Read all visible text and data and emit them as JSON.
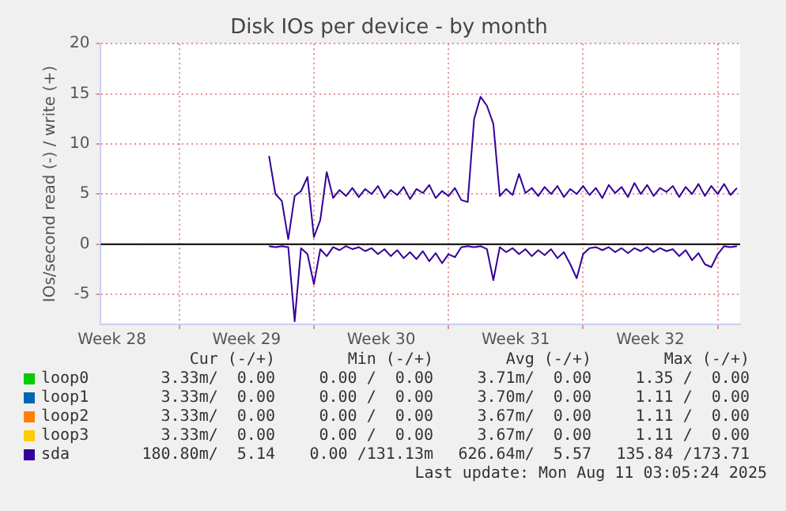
{
  "chart_data": {
    "type": "line",
    "title": "Disk IOs per device - by month",
    "ylabel": "IOs/second read (-) / write (+)",
    "x": [
      "2025-07-17T16:00",
      "2025-07-18T00:00",
      "2025-07-18T08:00",
      "2025-07-18T16:00",
      "2025-07-19T00:00",
      "2025-07-19T08:00",
      "2025-07-19T16:00",
      "2025-07-20T00:00",
      "2025-07-20T08:00",
      "2025-07-20T16:00",
      "2025-07-21T00:00",
      "2025-07-21T08:00",
      "2025-07-21T16:00",
      "2025-07-22T00:00",
      "2025-07-22T08:00",
      "2025-07-22T16:00",
      "2025-07-23T00:00",
      "2025-07-23T08:00",
      "2025-07-23T16:00",
      "2025-07-24T00:00",
      "2025-07-24T08:00",
      "2025-07-24T16:00",
      "2025-07-25T00:00",
      "2025-07-25T08:00",
      "2025-07-25T16:00",
      "2025-07-26T00:00",
      "2025-07-26T08:00",
      "2025-07-26T16:00",
      "2025-07-27T00:00",
      "2025-07-27T08:00",
      "2025-07-27T16:00",
      "2025-07-28T00:00",
      "2025-07-28T08:00",
      "2025-07-28T16:00",
      "2025-07-29T00:00",
      "2025-07-29T08:00",
      "2025-07-29T16:00",
      "2025-07-30T00:00",
      "2025-07-30T08:00",
      "2025-07-30T16:00",
      "2025-07-31T00:00",
      "2025-07-31T08:00",
      "2025-07-31T16:00",
      "2025-08-01T00:00",
      "2025-08-01T08:00",
      "2025-08-01T16:00",
      "2025-08-02T00:00",
      "2025-08-02T08:00",
      "2025-08-02T16:00",
      "2025-08-03T00:00",
      "2025-08-03T08:00",
      "2025-08-03T16:00",
      "2025-08-04T00:00",
      "2025-08-04T08:00",
      "2025-08-04T16:00",
      "2025-08-05T00:00",
      "2025-08-05T08:00",
      "2025-08-05T16:00",
      "2025-08-06T00:00",
      "2025-08-06T08:00",
      "2025-08-06T16:00",
      "2025-08-07T00:00",
      "2025-08-07T08:00",
      "2025-08-07T16:00",
      "2025-08-08T00:00",
      "2025-08-08T08:00",
      "2025-08-08T16:00",
      "2025-08-09T00:00",
      "2025-08-09T08:00",
      "2025-08-09T16:00",
      "2025-08-10T00:00",
      "2025-08-10T08:00",
      "2025-08-10T16:00",
      "2025-08-11T00:00"
    ],
    "series": [
      {
        "name": "loop0",
        "color": "#00cc00",
        "values": [
          null,
          null,
          null,
          null,
          null,
          null,
          null,
          null,
          null,
          null,
          null,
          null,
          null,
          null,
          null,
          null,
          null,
          null,
          null,
          null,
          null,
          null,
          null,
          null,
          null,
          null,
          null,
          null,
          null,
          null,
          null,
          null,
          null,
          null,
          null,
          null,
          null,
          null,
          null,
          null,
          null,
          null,
          null,
          null,
          null,
          null,
          null,
          null,
          null,
          null,
          null,
          null,
          null,
          null,
          null,
          null,
          null,
          null,
          null,
          null,
          null,
          null,
          null,
          null,
          null,
          null,
          null,
          null,
          null,
          null,
          null,
          null,
          null,
          null
        ]
      },
      {
        "name": "loop1",
        "color": "#0066b3",
        "values": [
          null,
          null,
          null,
          null,
          null,
          null,
          null,
          null,
          null,
          null,
          null,
          null,
          null,
          null,
          null,
          null,
          null,
          null,
          null,
          null,
          null,
          null,
          null,
          null,
          null,
          null,
          null,
          null,
          null,
          null,
          null,
          null,
          null,
          null,
          null,
          null,
          null,
          null,
          null,
          null,
          null,
          null,
          null,
          null,
          null,
          null,
          null,
          null,
          null,
          null,
          null,
          null,
          null,
          null,
          null,
          null,
          null,
          null,
          null,
          null,
          null,
          null,
          null,
          null,
          null,
          null,
          null,
          null,
          null,
          null,
          null,
          null,
          null,
          null
        ]
      },
      {
        "name": "loop2",
        "color": "#ff8000",
        "values": [
          null,
          null,
          null,
          null,
          null,
          null,
          null,
          null,
          null,
          null,
          null,
          null,
          null,
          null,
          null,
          null,
          null,
          null,
          null,
          null,
          null,
          null,
          null,
          null,
          null,
          null,
          null,
          null,
          null,
          null,
          null,
          null,
          null,
          null,
          null,
          null,
          null,
          null,
          null,
          null,
          null,
          null,
          null,
          null,
          null,
          null,
          null,
          null,
          null,
          null,
          null,
          null,
          null,
          null,
          null,
          null,
          null,
          null,
          null,
          null,
          null,
          null,
          null,
          null,
          null,
          null,
          null,
          null,
          null,
          null,
          null,
          null,
          null,
          null
        ]
      },
      {
        "name": "loop3",
        "color": "#ffcc00",
        "values": [
          null,
          null,
          null,
          null,
          null,
          null,
          null,
          null,
          null,
          null,
          null,
          null,
          null,
          null,
          null,
          null,
          null,
          null,
          null,
          null,
          null,
          null,
          null,
          null,
          null,
          null,
          null,
          null,
          null,
          null,
          null,
          null,
          null,
          null,
          null,
          null,
          null,
          null,
          null,
          null,
          null,
          null,
          null,
          null,
          null,
          null,
          null,
          null,
          null,
          null,
          null,
          null,
          null,
          null,
          null,
          null,
          null,
          null,
          null,
          null,
          null,
          null,
          null,
          null,
          null,
          null,
          null,
          null,
          null,
          null,
          null,
          null,
          null,
          null
        ]
      },
      {
        "name": "sda",
        "color": "#330099",
        "values": [
          -0.2,
          -0.3,
          -0.2,
          -0.3,
          -7.7,
          -0.4,
          -1.0,
          -4.0,
          -0.5,
          -1.2,
          -0.3,
          -0.6,
          -0.2,
          -0.5,
          -0.3,
          -0.7,
          -0.4,
          -1.0,
          -0.5,
          -1.2,
          -0.6,
          -1.4,
          -0.8,
          -1.5,
          -0.7,
          -1.7,
          -0.9,
          -1.9,
          -1.0,
          -1.3,
          -0.3,
          -0.2,
          -0.3,
          -0.2,
          -0.5,
          -3.6,
          -0.3,
          -0.8,
          -0.4,
          -1.0,
          -0.5,
          -1.2,
          -0.6,
          -1.1,
          -0.5,
          -1.4,
          -0.8,
          -2.0,
          -3.4,
          -1.0,
          -0.4,
          -0.3,
          -0.6,
          -0.3,
          -0.8,
          -0.4,
          -0.9,
          -0.4,
          -0.7,
          -0.3,
          -0.8,
          -0.4,
          -0.7,
          -0.5,
          -1.2,
          -0.6,
          -1.6,
          -0.9,
          -2.0,
          -2.3,
          -1.0,
          -0.2,
          -0.3,
          -0.2
        ]
      },
      {
        "color": "#330099",
        "values": [
          8.8,
          5.0,
          4.3,
          0.5,
          4.8,
          5.3,
          6.7,
          0.7,
          2.4,
          7.2,
          4.6,
          5.4,
          4.8,
          5.6,
          4.7,
          5.5,
          5.0,
          5.8,
          4.6,
          5.4,
          4.9,
          5.7,
          4.5,
          5.5,
          5.1,
          5.9,
          4.6,
          5.3,
          4.8,
          5.6,
          4.4,
          4.2,
          12.5,
          14.7,
          13.8,
          12.0,
          4.8,
          5.5,
          4.9,
          7.0,
          5.1,
          5.6,
          4.8,
          5.7,
          5.0,
          5.8,
          4.7,
          5.5,
          5.0,
          5.8,
          4.9,
          5.6,
          4.6,
          5.9,
          5.1,
          5.7,
          4.7,
          6.1,
          5.0,
          5.9,
          4.8,
          5.6,
          5.2,
          5.8,
          4.7,
          5.7,
          5.0,
          6.0,
          4.8,
          5.8,
          5.0,
          6.0,
          4.9,
          5.6
        ]
      }
    ],
    "xlim": [
      "2025-07-08T22:00",
      "2025-08-11T04:00"
    ],
    "xticks": [
      {
        "value": "2025-07-09T12:00",
        "label": "Week 28"
      },
      {
        "value": "2025-07-13T00:00",
        "label": null
      },
      {
        "value": "2025-07-16T12:00",
        "label": "Week 29"
      },
      {
        "value": "2025-07-20T00:00",
        "label": null
      },
      {
        "value": "2025-07-23T12:00",
        "label": "Week 30"
      },
      {
        "value": "2025-07-27T00:00",
        "label": null
      },
      {
        "value": "2025-07-30T12:00",
        "label": "Week 31"
      },
      {
        "value": "2025-08-03T00:00",
        "label": null
      },
      {
        "value": "2025-08-06T12:00",
        "label": "Week 32"
      },
      {
        "value": "2025-08-10T00:00",
        "label": null
      }
    ],
    "ylim": [
      -8,
      20
    ],
    "yticks": [
      -5,
      0,
      5,
      10,
      15,
      20
    ],
    "grid": true,
    "legend": "bottom",
    "marker": "none",
    "ref_lines": [
      {
        "axis": "y",
        "value": 0,
        "color": "#000000"
      }
    ],
    "annotations": [
      "Cur (-/+)",
      "Min (-/+)",
      "Avg (-/+)",
      "Max (-/+)",
      "3.33m/  0.00",
      "0.00 /  0.00",
      "3.71m/  0.00",
      "1.35 /  0.00",
      "3.33m/  0.00",
      "0.00 /  0.00",
      "3.70m/  0.00",
      "1.11 /  0.00",
      "3.33m/  0.00",
      "0.00 /  0.00",
      "3.67m/  0.00",
      "1.11 /  0.00",
      "3.33m/  0.00",
      "0.00 /  0.00",
      "3.67m/  0.00",
      "1.11 /  0.00",
      "180.80m/  5.14",
      "0.00 /131.13m",
      "626.64m/  5.57",
      "135.84 /173.71",
      "Last update: Mon Aug 11 03:05:24 2025"
    ]
  }
}
